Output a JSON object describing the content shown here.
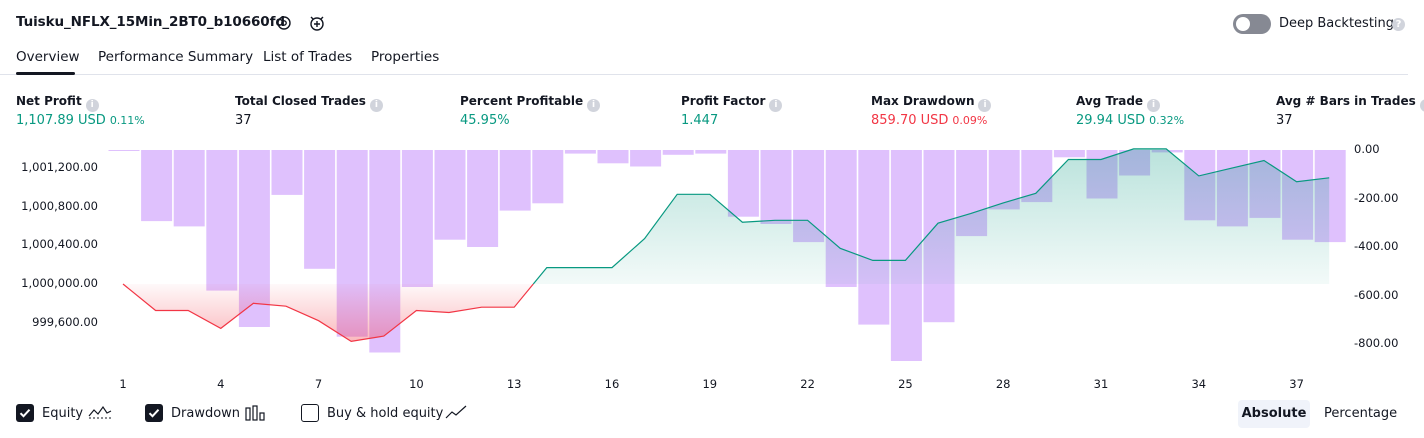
{
  "header": {
    "title": "Tuisku_NFLX_15Min_2BT0_b10660fd",
    "deep_backtesting_label": "Deep Backtesting",
    "deep_backtesting_on": false
  },
  "tabs": [
    {
      "label": "Overview",
      "active": true
    },
    {
      "label": "Performance Summary",
      "active": false
    },
    {
      "label": "List of Trades",
      "active": false
    },
    {
      "label": "Properties",
      "active": false
    }
  ],
  "metrics": [
    {
      "label": "Net Profit",
      "value": "1,107.89 USD",
      "pct": "0.11%",
      "color": "#089981"
    },
    {
      "label": "Total Closed Trades",
      "value": "37",
      "pct": "",
      "color": "#131722"
    },
    {
      "label": "Percent Profitable",
      "value": "45.95%",
      "pct": "",
      "color": "#089981"
    },
    {
      "label": "Profit Factor",
      "value": "1.447",
      "pct": "",
      "color": "#089981"
    },
    {
      "label": "Max Drawdown",
      "value": "859.70 USD",
      "pct": "0.09%",
      "color": "#f23645"
    },
    {
      "label": "Avg Trade",
      "value": "29.94 USD",
      "pct": "0.32%",
      "color": "#089981"
    },
    {
      "label": "Avg # Bars in Trades",
      "value": "37",
      "pct": "",
      "color": "#131722"
    }
  ],
  "chart_data": {
    "type": "line",
    "x": [
      1,
      2,
      3,
      4,
      5,
      6,
      7,
      8,
      9,
      10,
      11,
      12,
      13,
      14,
      15,
      16,
      17,
      18,
      19,
      20,
      21,
      22,
      23,
      24,
      25,
      26,
      27,
      28,
      29,
      30,
      31,
      32,
      33,
      34,
      35,
      36,
      37,
      38
    ],
    "x_ticks": [
      "1",
      "4",
      "7",
      "10",
      "13",
      "16",
      "19",
      "22",
      "25",
      "28",
      "31",
      "34",
      "37"
    ],
    "equity_axis": {
      "ticks": [
        "1,001,200.00",
        "1,000,800.00",
        "1,000,400.00",
        "1,000,000.00",
        "999,600.00"
      ],
      "baseline": 1000000
    },
    "drawdown_axis": {
      "ticks": [
        "0.00",
        "-200.00",
        "-400.00",
        "-600.00",
        "-800.00"
      ]
    },
    "series": [
      {
        "name": "Equity",
        "color": "#089981",
        "negative_color": "#f23645",
        "values": [
          1000000,
          999725,
          999725,
          999540,
          999800,
          999770,
          999620,
          999405,
          999460,
          999725,
          999705,
          999760,
          999760,
          1000170,
          1000170,
          1000170,
          1000470,
          1000930,
          1000930,
          1000640,
          1000660,
          1000660,
          1000370,
          1000245,
          1000245,
          1000630,
          1000730,
          1000840,
          1000940,
          1001290,
          1001290,
          1001400,
          1001400,
          1001120,
          1001200,
          1001280,
          1001060,
          1001100
        ]
      },
      {
        "name": "Drawdown",
        "color": "#c084fc",
        "values": [
          -3,
          -293,
          -315,
          -580,
          -730,
          -185,
          -490,
          -770,
          -835,
          -565,
          -370,
          -400,
          -250,
          -220,
          -15,
          -55,
          -68,
          -20,
          -15,
          -275,
          -305,
          -380,
          -565,
          -720,
          -870,
          -710,
          -355,
          -245,
          -215,
          -30,
          -200,
          -105,
          -10,
          -290,
          -315,
          -280,
          -370,
          -380
        ]
      }
    ],
    "buy_hold_equity": {
      "name": "Buy & hold equity",
      "visible": false
    }
  },
  "legend": {
    "equity_label": "Equity",
    "equity_checked": true,
    "drawdown_label": "Drawdown",
    "drawdown_checked": true,
    "buyhold_label": "Buy & hold equity",
    "buyhold_checked": false
  },
  "mode": {
    "absolute_label": "Absolute",
    "percentage_label": "Percentage",
    "selected": "Absolute"
  }
}
